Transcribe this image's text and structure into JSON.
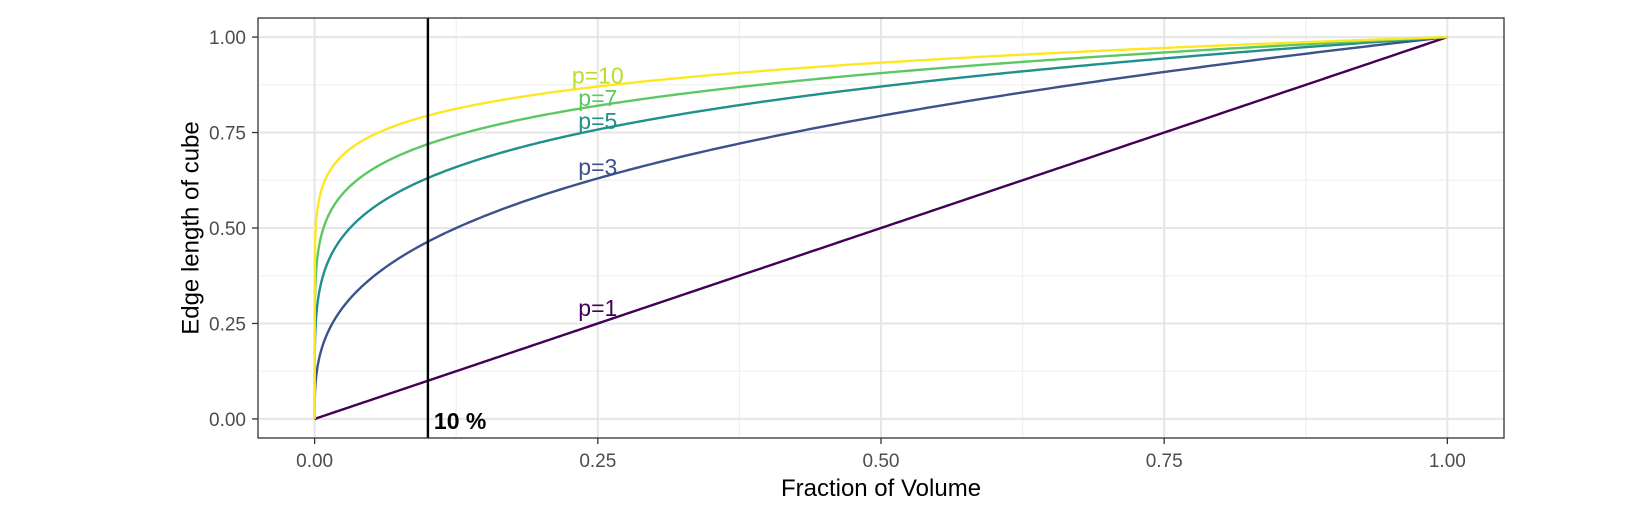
{
  "chart_data": {
    "type": "line",
    "title": "",
    "xlabel": "Fraction of Volume",
    "ylabel": "Edge length of cube",
    "xlim": [
      -0.05,
      1.05
    ],
    "ylim": [
      -0.05,
      1.05
    ],
    "x_ticks": [
      0,
      0.25,
      0.5,
      0.75,
      1
    ],
    "x_tick_labels": [
      "0.00",
      "0.25",
      "0.50",
      "0.75",
      "1.00"
    ],
    "y_ticks": [
      0,
      0.25,
      0.5,
      0.75,
      1
    ],
    "y_tick_labels": [
      "0.00",
      "0.25",
      "0.50",
      "0.75",
      "1.00"
    ],
    "grid": true,
    "legend": "none",
    "formula": "y = x^(1/p)",
    "series": [
      {
        "p": 1,
        "label": "p=1",
        "color": "#440154",
        "label_color": "#440154",
        "label_x": 0.25,
        "label_y": 0.29
      },
      {
        "p": 3,
        "label": "p=3",
        "color": "#3B528B",
        "label_color": "#3B528B",
        "label_x": 0.25,
        "label_y": 0.66
      },
      {
        "p": 5,
        "label": "p=5",
        "color": "#21908C",
        "label_color": "#21908C",
        "label_x": 0.25,
        "label_y": 0.78
      },
      {
        "p": 7,
        "label": "p=7",
        "color": "#5DC863",
        "label_color": "#5DC863",
        "label_x": 0.25,
        "label_y": 0.84
      },
      {
        "p": 10,
        "label": "p=10",
        "color": "#FDE725",
        "label_color": "#B8DE29",
        "label_x": 0.25,
        "label_y": 0.9
      }
    ],
    "reference_line": {
      "x": 0.1,
      "label": "10 %",
      "color": "#000000"
    }
  }
}
